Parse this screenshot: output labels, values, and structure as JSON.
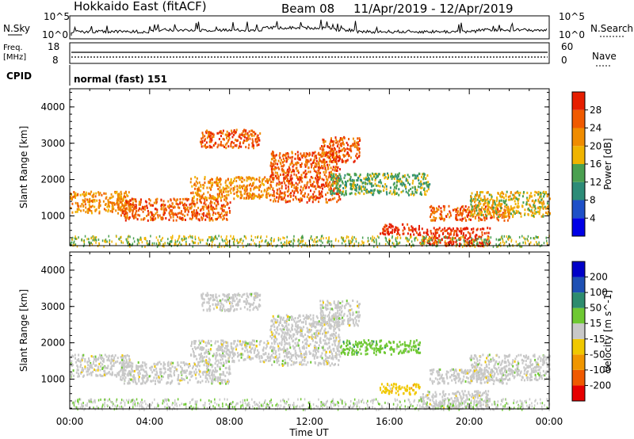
{
  "header": {
    "station": "Hokkaido East (fitACF)",
    "beam": "Beam 08",
    "dates": "11/Apr/2019 - 12/Apr/2019"
  },
  "strip": {
    "nsky_label": "N.Sky",
    "nsearch_label": "N.Search",
    "noise_ticks_left": [
      "10^5",
      "10^0"
    ],
    "noise_ticks_right": [
      "10^5",
      "10^0"
    ],
    "freq_label_1": "Freq.",
    "freq_label_2": "[MHz]",
    "freq_ticks": [
      "18",
      "8"
    ],
    "nave_label": "Nave",
    "nave_ticks": [
      "60",
      "0"
    ],
    "cpid_label": "CPID",
    "cpid_value": "normal (fast) 151"
  },
  "colors": {
    "power": [
      "#0000e6",
      "#1e50c8",
      "#2d8c78",
      "#4aa050",
      "#f0b400",
      "#f08c00",
      "#f05a00",
      "#e61e00"
    ],
    "velocity": [
      "#e60000",
      "#f05a00",
      "#f09600",
      "#f0c800",
      "#c8c8c8",
      "#6ec832",
      "#2d8c6e",
      "#1e50b4",
      "#0000c8"
    ]
  },
  "chart_data": [
    {
      "type": "heatmap",
      "title": "",
      "xlabel": "Time UT",
      "ylabel": "Slant Range [km]",
      "x_ticks": [
        "00:00",
        "04:00",
        "08:00",
        "12:00",
        "16:00",
        "20:00",
        "00:00"
      ],
      "y_ticks": [
        "1000",
        "2000",
        "3000",
        "4000"
      ],
      "xlim_hours": [
        0,
        24
      ],
      "ylim_km": [
        180,
        4500
      ],
      "colorbar": {
        "label": "Power [dB]",
        "ticks": [
          "4",
          "8",
          "12",
          "16",
          "20",
          "24",
          "28"
        ],
        "range": [
          0,
          32
        ]
      },
      "echo_bands": [
        {
          "t0": 0.0,
          "t1": 3.0,
          "r0": 1100,
          "r1": 1700,
          "level": 5
        },
        {
          "t0": 2.5,
          "t1": 8.0,
          "r0": 900,
          "r1": 1500,
          "level": 6
        },
        {
          "t0": 6.0,
          "t1": 10.0,
          "r0": 1500,
          "r1": 2100,
          "level": 5
        },
        {
          "t0": 6.5,
          "t1": 9.5,
          "r0": 2900,
          "r1": 3400,
          "level": 6
        },
        {
          "t0": 10.0,
          "t1": 13.5,
          "r0": 1400,
          "r1": 2800,
          "level": 6
        },
        {
          "t0": 12.5,
          "t1": 14.5,
          "r0": 2500,
          "r1": 3200,
          "level": 6
        },
        {
          "t0": 13.0,
          "t1": 18.0,
          "r0": 1600,
          "r1": 2200,
          "level": 3
        },
        {
          "t0": 15.5,
          "t1": 17.5,
          "r0": 500,
          "r1": 800,
          "level": 7
        },
        {
          "t0": 17.5,
          "t1": 21.0,
          "r0": 200,
          "r1": 700,
          "level": 7
        },
        {
          "t0": 18.0,
          "t1": 22.0,
          "r0": 900,
          "r1": 1300,
          "level": 6
        },
        {
          "t0": 20.0,
          "t1": 24.0,
          "r0": 1000,
          "r1": 1700,
          "level": 4
        }
      ]
    },
    {
      "type": "heatmap",
      "title": "",
      "xlabel": "Time UT",
      "ylabel": "Slant Range [km]",
      "x_ticks": [
        "00:00",
        "04:00",
        "08:00",
        "12:00",
        "16:00",
        "20:00",
        "00:00"
      ],
      "y_ticks": [
        "1000",
        "2000",
        "3000",
        "4000"
      ],
      "xlim_hours": [
        0,
        24
      ],
      "ylim_km": [
        180,
        4500
      ],
      "colorbar": {
        "label": "Velocity [m s^-1]",
        "ticks": [
          "200",
          "100",
          "50",
          "15",
          "-15",
          "-50",
          "-100",
          "-200"
        ],
        "range": [
          -250,
          250
        ]
      },
      "echo_bands": [
        {
          "t0": 0.0,
          "t1": 3.0,
          "r0": 1100,
          "r1": 1700,
          "level": 4
        },
        {
          "t0": 2.5,
          "t1": 8.0,
          "r0": 900,
          "r1": 1500,
          "level": 4
        },
        {
          "t0": 6.0,
          "t1": 10.0,
          "r0": 1500,
          "r1": 2100,
          "level": 4
        },
        {
          "t0": 6.5,
          "t1": 9.5,
          "r0": 2900,
          "r1": 3400,
          "level": 4
        },
        {
          "t0": 10.0,
          "t1": 13.5,
          "r0": 1400,
          "r1": 2800,
          "level": 4
        },
        {
          "t0": 12.5,
          "t1": 14.5,
          "r0": 2500,
          "r1": 3200,
          "level": 4
        },
        {
          "t0": 13.5,
          "t1": 17.5,
          "r0": 1700,
          "r1": 2100,
          "level": 5
        },
        {
          "t0": 15.5,
          "t1": 17.5,
          "r0": 600,
          "r1": 900,
          "level": 3
        },
        {
          "t0": 17.5,
          "t1": 21.0,
          "r0": 200,
          "r1": 700,
          "level": 4
        },
        {
          "t0": 18.0,
          "t1": 22.0,
          "r0": 900,
          "r1": 1300,
          "level": 4
        },
        {
          "t0": 20.0,
          "t1": 24.0,
          "r0": 1000,
          "r1": 1700,
          "level": 4
        }
      ]
    }
  ]
}
